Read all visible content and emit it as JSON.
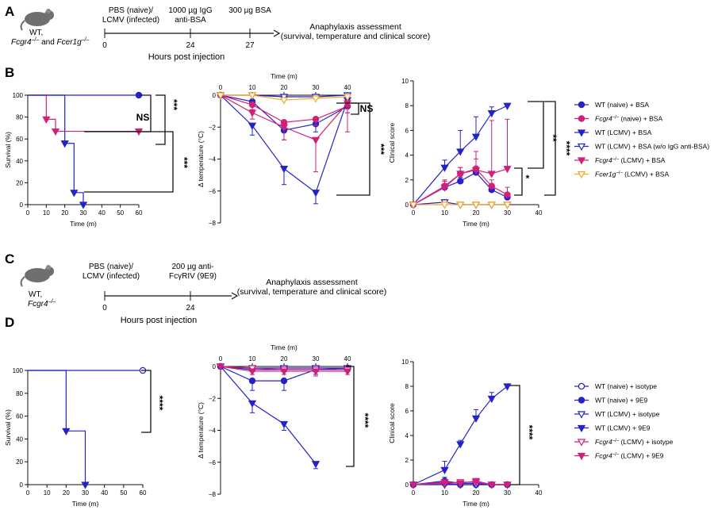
{
  "colors": {
    "wt": "#2323c8",
    "ko": "#d0207a",
    "fcer": "#f5a623",
    "axis": "#111111"
  },
  "panels": {
    "A": {
      "label": "A",
      "mouse_line1": "WT,",
      "mouse_line2": "Fcgr4",
      "mouse_line2_sup": "–/–",
      "mouse_line2_and": " and ",
      "mouse_line2b": "Fcer1g",
      "mouse_line2b_sup": "–/–",
      "step1_line1": "PBS (naive)/",
      "step1_line2": "LCMV (infected)",
      "step2_line1": "1000 µg IgG",
      "step2_line2": "anti-BSA",
      "step3": "300 µg BSA",
      "tick0": "0",
      "tick1": "24",
      "tick2": "27",
      "outcome_line1": "Anaphylaxis assessment",
      "outcome_line2": "(survival, temperature and clinical score)",
      "timeline_label": "Hours post injection"
    },
    "B": {
      "label": "B"
    },
    "C": {
      "label": "C",
      "mouse_line1": "WT,",
      "mouse_line2": "Fcgr4",
      "mouse_line2_sup": "–/–",
      "step1_line1": "PBS (naive)/",
      "step1_line2": "LCMV (infected)",
      "step2_line1": "200 µg anti-",
      "step2_line2": "FcγRIV (9E9)",
      "tick0": "0",
      "tick1": "24",
      "outcome_line1": "Anaphylaxis assessment",
      "outcome_line2": "(survival, temperature and clinical score)",
      "timeline_label": "Hours post injection"
    },
    "D": {
      "label": "D"
    }
  },
  "chart_data": [
    {
      "id": "B-survival",
      "type": "line",
      "step": true,
      "ylabel": "Survival (%)",
      "xlabel": "Time (m)",
      "xlim": [
        0,
        60
      ],
      "ylim": [
        0,
        100
      ],
      "xticks": [
        "0",
        "10",
        "20",
        "30",
        "40",
        "50",
        "60"
      ],
      "yticks": [
        "0",
        "20",
        "40",
        "60",
        "80",
        "100"
      ],
      "series": [
        {
          "name": "WT (LCMV) + BSA",
          "x": [
            0,
            20,
            25,
            30
          ],
          "values": [
            100,
            56,
            11,
            0
          ]
        },
        {
          "name": "Fcgr4−/− (LCMV) + BSA",
          "x": [
            0,
            10,
            15,
            60
          ],
          "values": [
            100,
            78,
            67,
            67
          ]
        },
        {
          "name": "WT (naive) + BSA",
          "x": [
            0,
            60
          ],
          "values": [
            100,
            100
          ]
        }
      ],
      "annotations": [
        "NS",
        "***",
        "***"
      ]
    },
    {
      "id": "B-temperature",
      "type": "line",
      "ylabel": "Δ temperature (°C)",
      "xlabel": "Time (m)",
      "xlim": [
        0,
        40
      ],
      "ylim": [
        -8,
        0
      ],
      "xticks": [
        "0",
        "10",
        "20",
        "30",
        "40"
      ],
      "yticks": [
        "0",
        "−2",
        "−4",
        "−6",
        "−8"
      ],
      "x": [
        0,
        10,
        20,
        30,
        40
      ],
      "series": [
        {
          "name": "WT (naive) + BSA",
          "values": [
            0,
            -0.4,
            -2.2,
            -1.8,
            -0.7
          ]
        },
        {
          "name": "Fcgr4−/− (naive) + BSA",
          "values": [
            0,
            -0.6,
            -1.7,
            -1.5,
            -0.7
          ]
        },
        {
          "name": "WT (LCMV) + BSA",
          "values": [
            0,
            -1.9,
            -4.6,
            -6.1,
            -0.3
          ]
        },
        {
          "name": "WT (LCMV) + BSA (w/o IgG anti-BSA)",
          "values": [
            0,
            0,
            -0.1,
            -0.1,
            0
          ]
        },
        {
          "name": "Fcgr4−/− (LCMV) + BSA",
          "values": [
            0,
            -1.1,
            -2.0,
            -2.8,
            -0.5
          ]
        },
        {
          "name": "Fcer1g−/− (LCMV) + BSA",
          "values": [
            0,
            0,
            -0.3,
            -0.2,
            -0.1
          ]
        }
      ],
      "annotations": [
        "NS",
        "***"
      ]
    },
    {
      "id": "B-clinical",
      "type": "line",
      "ylabel": "Clinical score",
      "xlabel": "Time (m)",
      "xlim": [
        0,
        40
      ],
      "ylim": [
        0,
        10
      ],
      "xticks": [
        "0",
        "10",
        "20",
        "30",
        "40"
      ],
      "yticks": [
        "0",
        "2",
        "4",
        "6",
        "8",
        "10"
      ],
      "x": [
        0,
        10,
        15,
        20,
        25,
        30
      ],
      "series": [
        {
          "name": "WT (naive) + BSA",
          "values": [
            0,
            1.4,
            1.9,
            2.6,
            1.2,
            0.6
          ]
        },
        {
          "name": "Fcgr4−/− (naive) + BSA",
          "values": [
            0,
            1.5,
            2.5,
            2.9,
            1.5,
            0.8
          ]
        },
        {
          "name": "WT (LCMV) + BSA",
          "values": [
            0,
            3.0,
            4.3,
            5.5,
            7.4,
            8.0
          ]
        },
        {
          "name": "WT (LCMV) + BSA (w/o IgG anti-BSA)",
          "values": [
            0,
            0.2,
            0,
            0,
            0,
            0
          ]
        },
        {
          "name": "Fcgr4−/− (LCMV) + BSA",
          "values": [
            0,
            1.4,
            2.5,
            2.8,
            2.5,
            2.9
          ]
        },
        {
          "name": "Fcer1g−/− (LCMV) + BSA",
          "values": [
            0,
            0,
            0,
            0,
            0,
            0
          ]
        }
      ],
      "annotations": [
        "**",
        "****",
        "*"
      ]
    },
    {
      "id": "D-survival",
      "type": "line",
      "step": true,
      "ylabel": "Survival (%)",
      "xlabel": "Time (m)",
      "xlim": [
        0,
        60
      ],
      "ylim": [
        0,
        100
      ],
      "xticks": [
        "0",
        "10",
        "20",
        "30",
        "40",
        "50",
        "60"
      ],
      "yticks": [
        "0",
        "20",
        "40",
        "60",
        "80",
        "100"
      ],
      "series": [
        {
          "name": "WT (LCMV) + 9E9",
          "x": [
            0,
            20,
            30
          ],
          "values": [
            100,
            47,
            0
          ]
        },
        {
          "name": "WT (naive) + isotype",
          "x": [
            0,
            60
          ],
          "values": [
            100,
            100
          ]
        }
      ],
      "annotations": [
        "****"
      ]
    },
    {
      "id": "D-temperature",
      "type": "line",
      "ylabel": "Δ temperature (°C)",
      "xlabel": "Time (m)",
      "xlim": [
        0,
        40
      ],
      "ylim": [
        -8,
        0
      ],
      "xticks": [
        "0",
        "10",
        "20",
        "30",
        "40"
      ],
      "yticks": [
        "0",
        "−2",
        "−4",
        "−6",
        "−8"
      ],
      "x": [
        0,
        10,
        20,
        30,
        40
      ],
      "series": [
        {
          "name": "WT (naive) + isotype",
          "values": [
            0,
            -0.2,
            -0.2,
            -0.2,
            -0.2
          ]
        },
        {
          "name": "WT (naive) + 9E9",
          "values": [
            0,
            -0.9,
            -0.9,
            -0.2,
            -0.1
          ]
        },
        {
          "name": "WT (LCMV) + isotype",
          "values": [
            0,
            -0.1,
            -0.1,
            -0.1,
            -0.1
          ]
        },
        {
          "name": "WT (LCMV) + 9E9",
          "values": [
            0,
            -2.3,
            -3.6,
            -6.1,
            null
          ]
        },
        {
          "name": "Fcgr4−/− (LCMV) + isotype",
          "values": [
            0,
            -0.1,
            -0.2,
            -0.2,
            -0.2
          ]
        },
        {
          "name": "Fcgr4−/− (LCMV) + 9E9",
          "values": [
            0,
            -0.3,
            -0.3,
            -0.3,
            -0.3
          ]
        }
      ],
      "annotations": [
        "****"
      ]
    },
    {
      "id": "D-clinical",
      "type": "line",
      "ylabel": "Clinical score",
      "xlabel": "Time (m)",
      "xlim": [
        0,
        40
      ],
      "ylim": [
        0,
        10
      ],
      "xticks": [
        "0",
        "10",
        "20",
        "30",
        "40"
      ],
      "yticks": [
        "0",
        "2",
        "4",
        "6",
        "8",
        "10"
      ],
      "x": [
        0,
        10,
        15,
        20,
        25,
        30
      ],
      "series": [
        {
          "name": "WT (naive) + isotype",
          "values": [
            0,
            0.1,
            0,
            0,
            0,
            0
          ]
        },
        {
          "name": "WT (naive) + 9E9",
          "values": [
            0,
            0.3,
            0.1,
            0.1,
            0,
            0
          ]
        },
        {
          "name": "WT (LCMV) + isotype",
          "values": [
            0,
            0,
            0,
            0,
            0,
            0
          ]
        },
        {
          "name": "WT (LCMV) + 9E9",
          "values": [
            0,
            1.2,
            3.3,
            5.4,
            7.0,
            8.0
          ]
        },
        {
          "name": "Fcgr4−/− (LCMV) + isotype",
          "values": [
            0,
            0.1,
            0.2,
            0.2,
            0,
            0
          ]
        },
        {
          "name": "Fcgr4−/− (LCMV) + 9E9",
          "values": [
            0,
            0.2,
            0.1,
            0.3,
            0,
            0
          ]
        }
      ],
      "annotations": [
        "****"
      ]
    }
  ],
  "legendB": [
    {
      "label": "WT (naive) + BSA",
      "marker": "circle",
      "color": "wt",
      "fill": true
    },
    {
      "label": "Fcgr4",
      "sup": "–/–",
      "rest": " (naive) + BSA",
      "marker": "circle",
      "color": "ko",
      "fill": true
    },
    {
      "label": "WT (LCMV) + BSA",
      "marker": "tri-down",
      "color": "wt",
      "fill": true
    },
    {
      "label": "WT (LCMV) + BSA (w/o IgG anti-BSA)",
      "marker": "tri-down",
      "color": "wt",
      "fill": false
    },
    {
      "label": "Fcgr4",
      "sup": "–/–",
      "rest": " (LCMV) + BSA",
      "marker": "tri-down",
      "color": "ko",
      "fill": true
    },
    {
      "label": "Fcer1g",
      "sup": "–/–",
      "rest": " (LCMV) + BSA",
      "marker": "tri-down",
      "color": "fcer",
      "fill": false
    }
  ],
  "legendD": [
    {
      "label": "WT (naive) + isotype",
      "marker": "circle",
      "color": "wt",
      "fill": false
    },
    {
      "label": "WT (naive) + 9E9",
      "marker": "circle",
      "color": "wt",
      "fill": true
    },
    {
      "label": "WT (LCMV) + isotype",
      "marker": "tri-down",
      "color": "wt",
      "fill": false
    },
    {
      "label": "WT (LCMV) + 9E9",
      "marker": "tri-down",
      "color": "wt",
      "fill": true
    },
    {
      "label": "Fcgr4",
      "sup": "–/–",
      "rest": " (LCMV) + isotype",
      "marker": "tri-down",
      "color": "ko",
      "fill": false
    },
    {
      "label": "Fcgr4",
      "sup": "–/–",
      "rest": " (LCMV) + 9E9",
      "marker": "tri-down",
      "color": "ko",
      "fill": true
    }
  ]
}
